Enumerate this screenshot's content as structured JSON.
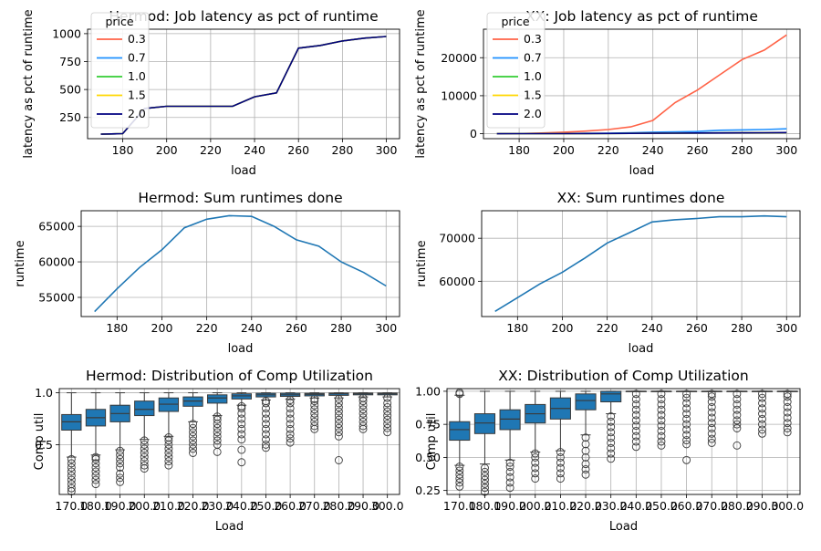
{
  "colors": {
    "price_0.3": "#ff6347",
    "price_0.7": "#1e90ff",
    "price_1.0": "#32cd32",
    "price_1.5": "#ffd700",
    "price_2.0": "#000080",
    "runtime_line": "#1f77b4",
    "box_fill": "#1f77b4",
    "box_edge": "#3a3a3a",
    "grid": "#b0b0b0"
  },
  "legend": {
    "title": "price",
    "entries": [
      "0.3",
      "0.7",
      "1.0",
      "1.5",
      "2.0"
    ]
  },
  "chart_data": [
    {
      "id": "hermod_latency",
      "type": "line",
      "title": "Hermod: Job latency as pct of runtime",
      "xlabel": "load",
      "ylabel": "latency as pct of runtime",
      "xlim": [
        164,
        306
      ],
      "ylim": [
        60,
        1040
      ],
      "xticks": [
        180,
        200,
        220,
        240,
        260,
        280,
        300
      ],
      "yticks": [
        250,
        500,
        750,
        1000
      ],
      "grid": true,
      "legend_position": "upper left",
      "x": [
        170,
        180,
        190,
        200,
        210,
        220,
        230,
        240,
        250,
        260,
        270,
        280,
        290,
        300
      ],
      "series": [
        {
          "name": "0.3",
          "values": [
            100,
            105,
            330,
            350,
            350,
            350,
            350,
            435,
            470,
            870,
            895,
            935,
            960,
            975
          ]
        },
        {
          "name": "0.7",
          "values": [
            100,
            105,
            330,
            350,
            350,
            350,
            350,
            435,
            470,
            870,
            895,
            935,
            960,
            975
          ]
        },
        {
          "name": "1.0",
          "values": [
            100,
            105,
            330,
            350,
            350,
            350,
            350,
            435,
            470,
            870,
            895,
            935,
            960,
            975
          ]
        },
        {
          "name": "1.5",
          "values": [
            100,
            105,
            330,
            350,
            350,
            350,
            350,
            435,
            470,
            870,
            895,
            935,
            960,
            975
          ]
        },
        {
          "name": "2.0",
          "values": [
            100,
            105,
            330,
            350,
            350,
            350,
            350,
            435,
            470,
            870,
            895,
            935,
            960,
            975
          ]
        }
      ]
    },
    {
      "id": "xx_latency",
      "type": "line",
      "title": "XX: Job latency as pct of runtime",
      "xlabel": "load",
      "ylabel": "latency as pct of runtime",
      "xlim": [
        164,
        306
      ],
      "ylim": [
        -1300,
        27500
      ],
      "xticks": [
        180,
        200,
        220,
        240,
        260,
        280,
        300
      ],
      "yticks": [
        0,
        10000,
        20000
      ],
      "grid": true,
      "legend_position": "upper left",
      "x": [
        170,
        180,
        190,
        200,
        210,
        220,
        230,
        240,
        250,
        260,
        270,
        280,
        290,
        300
      ],
      "series": [
        {
          "name": "0.3",
          "values": [
            0,
            50,
            200,
            400,
            700,
            1100,
            1800,
            3500,
            8200,
            11500,
            15500,
            19500,
            22000,
            26000
          ]
        },
        {
          "name": "0.7",
          "values": [
            0,
            20,
            50,
            80,
            110,
            150,
            250,
            400,
            500,
            600,
            900,
            1000,
            1100,
            1300
          ]
        },
        {
          "name": "1.0",
          "values": [
            0,
            10,
            20,
            30,
            40,
            60,
            90,
            120,
            150,
            180,
            210,
            240,
            270,
            300
          ]
        },
        {
          "name": "1.5",
          "values": [
            0,
            10,
            20,
            30,
            40,
            60,
            90,
            120,
            150,
            180,
            210,
            240,
            270,
            300
          ]
        },
        {
          "name": "2.0",
          "values": [
            0,
            10,
            20,
            30,
            40,
            60,
            90,
            120,
            150,
            180,
            210,
            240,
            270,
            300
          ]
        }
      ]
    },
    {
      "id": "hermod_runtime",
      "type": "line",
      "title": "Hermod: Sum runtimes done",
      "xlabel": "load",
      "ylabel": "runtime",
      "xlim": [
        164,
        306
      ],
      "ylim": [
        52300,
        67200
      ],
      "xticks": [
        180,
        200,
        220,
        240,
        260,
        280,
        300
      ],
      "yticks": [
        55000,
        60000,
        65000
      ],
      "grid": true,
      "x": [
        170,
        180,
        190,
        200,
        210,
        220,
        230,
        240,
        250,
        260,
        270,
        280,
        290,
        300
      ],
      "series": [
        {
          "values": [
            53000,
            56200,
            59200,
            61700,
            64800,
            66000,
            66500,
            66400,
            65000,
            63100,
            62200,
            60000,
            58500,
            56600
          ]
        }
      ]
    },
    {
      "id": "xx_runtime",
      "type": "line",
      "title": "XX: Sum runtimes done",
      "xlabel": "load",
      "ylabel": "runtime",
      "xlim": [
        164,
        306
      ],
      "ylim": [
        51800,
        76400
      ],
      "xticks": [
        180,
        200,
        220,
        240,
        260,
        280,
        300
      ],
      "yticks": [
        60000,
        70000
      ],
      "grid": true,
      "x": [
        170,
        180,
        190,
        200,
        210,
        220,
        230,
        240,
        250,
        260,
        270,
        280,
        290,
        300
      ],
      "series": [
        {
          "values": [
            53000,
            56200,
            59400,
            62100,
            65400,
            68900,
            71300,
            73800,
            74300,
            74600,
            75000,
            75000,
            75200,
            75000
          ]
        }
      ]
    },
    {
      "id": "hermod_util",
      "type": "box",
      "title": "Hermod: Distribution of Comp Utilization",
      "xlabel": "Load",
      "ylabel": "Comp util",
      "ylim": [
        0.02,
        1.04
      ],
      "yticks": [
        0.5,
        1.0
      ],
      "ytick_labels": [
        "0.5",
        "1.0"
      ],
      "grid": true,
      "categories": [
        "170.0",
        "180.0",
        "190.0",
        "200.0",
        "210.0",
        "220.0",
        "230.0",
        "240.0",
        "250.0",
        "260.0",
        "270.0",
        "280.0",
        "290.0",
        "300.0"
      ],
      "boxes": [
        {
          "whislo": 0.38,
          "q1": 0.64,
          "med": 0.72,
          "q3": 0.79,
          "whishi": 1.0,
          "fliers": [
            0.05,
            0.08,
            0.12,
            0.16,
            0.2,
            0.24,
            0.28,
            0.32,
            0.36
          ]
        },
        {
          "whislo": 0.4,
          "q1": 0.68,
          "med": 0.76,
          "q3": 0.84,
          "whishi": 1.0,
          "fliers": [
            0.12,
            0.16,
            0.2,
            0.24,
            0.28,
            0.32,
            0.36,
            0.38
          ]
        },
        {
          "whislo": 0.45,
          "q1": 0.72,
          "med": 0.8,
          "q3": 0.88,
          "whishi": 1.0,
          "fliers": [
            0.14,
            0.18,
            0.22,
            0.28,
            0.32,
            0.36,
            0.4,
            0.44
          ]
        },
        {
          "whislo": 0.55,
          "q1": 0.78,
          "med": 0.84,
          "q3": 0.92,
          "whishi": 1.0,
          "fliers": [
            0.27,
            0.3,
            0.34,
            0.38,
            0.42,
            0.46,
            0.5,
            0.54
          ]
        },
        {
          "whislo": 0.58,
          "q1": 0.82,
          "med": 0.89,
          "q3": 0.95,
          "whishi": 1.0,
          "fliers": [
            0.3,
            0.34,
            0.38,
            0.42,
            0.46,
            0.5,
            0.54,
            0.57
          ]
        },
        {
          "whislo": 0.72,
          "q1": 0.87,
          "med": 0.92,
          "q3": 0.96,
          "whishi": 1.0,
          "fliers": [
            0.42,
            0.46,
            0.5,
            0.54,
            0.58,
            0.62,
            0.66,
            0.7
          ]
        },
        {
          "whislo": 0.78,
          "q1": 0.9,
          "med": 0.95,
          "q3": 0.98,
          "whishi": 1.0,
          "fliers": [
            0.43,
            0.5,
            0.54,
            0.58,
            0.62,
            0.66,
            0.7,
            0.74,
            0.77
          ]
        },
        {
          "whislo": 0.88,
          "q1": 0.94,
          "med": 0.97,
          "q3": 0.99,
          "whishi": 1.0,
          "fliers": [
            0.33,
            0.45,
            0.55,
            0.6,
            0.65,
            0.7,
            0.75,
            0.8,
            0.85,
            0.87
          ]
        },
        {
          "whislo": 0.93,
          "q1": 0.96,
          "med": 0.98,
          "q3": 0.995,
          "whishi": 1.0,
          "fliers": [
            0.47,
            0.5,
            0.55,
            0.6,
            0.65,
            0.7,
            0.75,
            0.8,
            0.85,
            0.9,
            0.92
          ]
        },
        {
          "whislo": 0.94,
          "q1": 0.965,
          "med": 0.98,
          "q3": 0.995,
          "whishi": 1.0,
          "fliers": [
            0.52,
            0.56,
            0.6,
            0.65,
            0.7,
            0.75,
            0.8,
            0.85,
            0.9,
            0.93
          ]
        },
        {
          "whislo": 0.95,
          "q1": 0.97,
          "med": 0.985,
          "q3": 0.995,
          "whishi": 1.0,
          "fliers": [
            0.65,
            0.68,
            0.72,
            0.76,
            0.8,
            0.84,
            0.88,
            0.92,
            0.94
          ]
        },
        {
          "whislo": 0.95,
          "q1": 0.975,
          "med": 0.99,
          "q3": 0.998,
          "whishi": 1.0,
          "fliers": [
            0.35,
            0.58,
            0.62,
            0.66,
            0.7,
            0.74,
            0.78,
            0.82,
            0.86,
            0.9,
            0.94
          ]
        },
        {
          "whislo": 0.96,
          "q1": 0.98,
          "med": 0.99,
          "q3": 0.998,
          "whishi": 1.0,
          "fliers": [
            0.65,
            0.68,
            0.72,
            0.76,
            0.8,
            0.84,
            0.88,
            0.92,
            0.95
          ]
        },
        {
          "whislo": 0.96,
          "q1": 0.98,
          "med": 0.99,
          "q3": 0.998,
          "whishi": 1.0,
          "fliers": [
            0.62,
            0.66,
            0.7,
            0.74,
            0.78,
            0.82,
            0.86,
            0.9,
            0.95
          ]
        }
      ]
    },
    {
      "id": "xx_util",
      "type": "box",
      "title": "XX: Distribution of Comp Utilization",
      "xlabel": "Load",
      "ylabel": "Comp util",
      "ylim": [
        0.22,
        1.02
      ],
      "yticks": [
        0.25,
        0.5,
        0.75,
        1.0
      ],
      "ytick_labels": [
        "0.25",
        "0.50",
        "0.75",
        "1.00"
      ],
      "grid": true,
      "categories": [
        "170.0",
        "180.0",
        "190.0",
        "200.0",
        "210.0",
        "220.0",
        "230.0",
        "240.0",
        "250.0",
        "260.0",
        "270.0",
        "280.0",
        "290.0",
        "300.0"
      ],
      "boxes": [
        {
          "whislo": 0.44,
          "q1": 0.63,
          "med": 0.71,
          "q3": 0.77,
          "whishi": 0.97,
          "fliers": [
            0.28,
            0.31,
            0.34,
            0.37,
            0.4,
            0.43,
            0.98,
            0.99
          ]
        },
        {
          "whislo": 0.45,
          "q1": 0.68,
          "med": 0.76,
          "q3": 0.83,
          "whishi": 1.0,
          "fliers": [
            0.24,
            0.27,
            0.3,
            0.33,
            0.36,
            0.39,
            0.42
          ]
        },
        {
          "whislo": 0.48,
          "q1": 0.71,
          "med": 0.79,
          "q3": 0.86,
          "whishi": 1.0,
          "fliers": [
            0.27,
            0.31,
            0.35,
            0.39,
            0.43,
            0.46
          ]
        },
        {
          "whislo": 0.54,
          "q1": 0.76,
          "med": 0.83,
          "q3": 0.9,
          "whishi": 1.0,
          "fliers": [
            0.34,
            0.38,
            0.42,
            0.46,
            0.5,
            0.53
          ]
        },
        {
          "whislo": 0.55,
          "q1": 0.79,
          "med": 0.87,
          "q3": 0.95,
          "whishi": 1.0,
          "fliers": [
            0.34,
            0.38,
            0.42,
            0.46,
            0.5,
            0.54
          ]
        },
        {
          "whislo": 0.67,
          "q1": 0.86,
          "med": 0.93,
          "q3": 0.98,
          "whishi": 1.0,
          "fliers": [
            0.37,
            0.41,
            0.45,
            0.5,
            0.55,
            0.6,
            0.65
          ]
        },
        {
          "whislo": 0.83,
          "q1": 0.92,
          "med": 0.98,
          "q3": 1.0,
          "whishi": 1.0,
          "fliers": [
            0.49,
            0.53,
            0.57,
            0.61,
            0.65,
            0.69,
            0.73,
            0.77,
            0.81
          ]
        },
        {
          "whislo": 1.0,
          "q1": 1.0,
          "med": 1.0,
          "q3": 1.0,
          "whishi": 1.0,
          "fliers": [
            0.58,
            0.62,
            0.66,
            0.7,
            0.74,
            0.78,
            0.82,
            0.86,
            0.9,
            0.94,
            0.98
          ]
        },
        {
          "whislo": 1.0,
          "q1": 1.0,
          "med": 1.0,
          "q3": 1.0,
          "whishi": 1.0,
          "fliers": [
            0.59,
            0.62,
            0.66,
            0.7,
            0.74,
            0.78,
            0.82,
            0.86,
            0.9,
            0.94,
            0.98
          ]
        },
        {
          "whislo": 1.0,
          "q1": 1.0,
          "med": 1.0,
          "q3": 1.0,
          "whishi": 1.0,
          "fliers": [
            0.48,
            0.6,
            0.63,
            0.67,
            0.71,
            0.75,
            0.79,
            0.83,
            0.87,
            0.91,
            0.95,
            0.98
          ]
        },
        {
          "whislo": 1.0,
          "q1": 1.0,
          "med": 1.0,
          "q3": 1.0,
          "whishi": 1.0,
          "fliers": [
            0.61,
            0.64,
            0.68,
            0.72,
            0.76,
            0.8,
            0.84,
            0.88,
            0.92,
            0.96,
            0.98
          ]
        },
        {
          "whislo": 1.0,
          "q1": 1.0,
          "med": 1.0,
          "q3": 1.0,
          "whishi": 1.0,
          "fliers": [
            0.59,
            0.72,
            0.75,
            0.78,
            0.82,
            0.86,
            0.9,
            0.94,
            0.98
          ]
        },
        {
          "whislo": 1.0,
          "q1": 1.0,
          "med": 1.0,
          "q3": 1.0,
          "whishi": 1.0,
          "fliers": [
            0.68,
            0.71,
            0.75,
            0.79,
            0.83,
            0.87,
            0.91,
            0.95,
            0.98
          ]
        },
        {
          "whislo": 1.0,
          "q1": 1.0,
          "med": 1.0,
          "q3": 1.0,
          "whishi": 1.0,
          "fliers": [
            0.69,
            0.72,
            0.76,
            0.8,
            0.84,
            0.88,
            0.92,
            0.96,
            0.98
          ]
        }
      ]
    }
  ]
}
